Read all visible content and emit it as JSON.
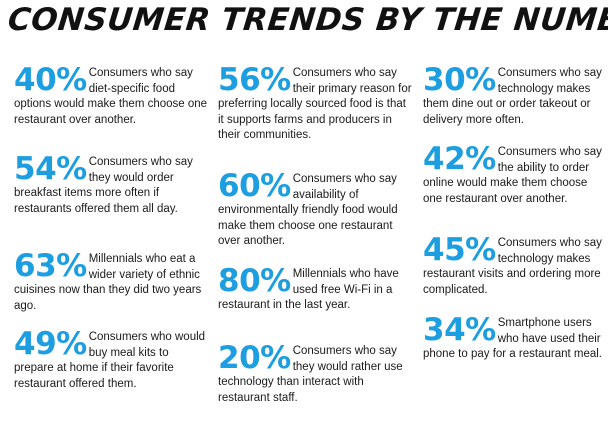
{
  "title": "CONSUMER TRENDS BY THE NUMBERS",
  "accent_color": "#1d9ee0",
  "columns": [
    [
      {
        "pct": "40%",
        "text": "Consumers who say diet-specific food options would make them choose one restaurant over another."
      },
      {
        "pct": "54%",
        "text": "Consumers who say they would order breakfast items more often if restaurants offered them all day."
      },
      {
        "pct": "63%",
        "text": "Millennials who eat a wider variety of ethnic cuisines now than they did two years ago."
      },
      {
        "pct": "49%",
        "text": "Consumers who would buy meal kits to prepare at home if their favorite restaurant offered them."
      }
    ],
    [
      {
        "pct": "56%",
        "text": "Consumers who say their primary reason for preferring locally sourced food is that it supports farms and producers in their communities."
      },
      {
        "pct": "60%",
        "text": "Consumers who say availability of environmentally friendly food would make them choose one restaurant over another."
      },
      {
        "pct": "80%",
        "text": "Millennials who have used free Wi-Fi in a restaurant in the last year."
      },
      {
        "pct": "20%",
        "text": "Consumers who say they would rather use technology than interact with restaurant staff."
      }
    ],
    [
      {
        "pct": "30%",
        "text": "Consumers who say technology makes them dine out or order takeout or delivery more often."
      },
      {
        "pct": "42%",
        "text": "Consumers who say the ability to order online would make them choose one restaurant over another."
      },
      {
        "pct": "45%",
        "text": "Consumers who say technology makes restaurant visits and ordering more complicated."
      },
      {
        "pct": "34%",
        "text": "Smartphone users who have used their phone to pay for a restaurant meal."
      }
    ]
  ]
}
